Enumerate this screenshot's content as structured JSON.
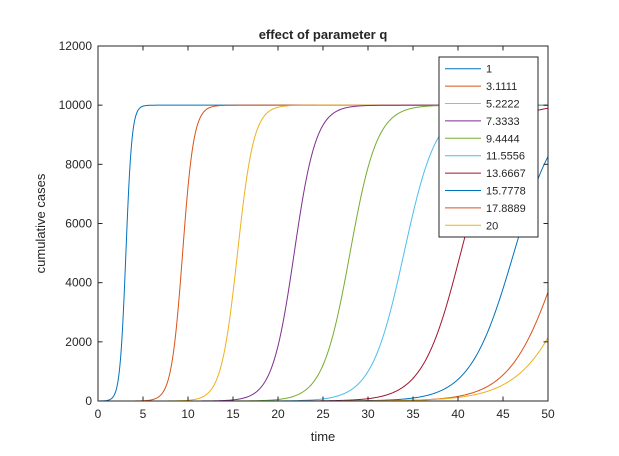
{
  "chart_data": {
    "type": "line",
    "title": "effect of parameter q",
    "xlabel": "time",
    "ylabel": "cumulative cases",
    "xlim": [
      0,
      50
    ],
    "ylim": [
      0,
      12000
    ],
    "xticks": [
      0,
      5,
      10,
      15,
      20,
      25,
      30,
      35,
      40,
      45,
      50
    ],
    "yticks": [
      0,
      2000,
      4000,
      6000,
      8000,
      10000,
      12000
    ],
    "grid": false,
    "legend_position": "top-right",
    "carrying_capacity": 10000,
    "series": [
      {
        "name": "1",
        "color": "#0072BD",
        "midpoint": 3.1,
        "rate": 3.0
      },
      {
        "name": "3.1111",
        "color": "#D95319",
        "midpoint": 9.4,
        "rate": 1.6
      },
      {
        "name": "5.2222",
        "color": "#EDB120",
        "midpoint": 15.5,
        "rate": 1.1
      },
      {
        "name": "7.3333",
        "color": "#7E2F8E",
        "midpoint": 21.8,
        "rate": 0.82
      },
      {
        "name": "9.4444",
        "color": "#77AC30",
        "midpoint": 28.0,
        "rate": 0.66
      },
      {
        "name": "11.5556",
        "color": "#4DBEEE",
        "midpoint": 34.0,
        "rate": 0.55
      },
      {
        "name": "13.6667",
        "color": "#A2142F",
        "midpoint": 40.3,
        "rate": 0.47
      },
      {
        "name": "15.7778",
        "color": "#0072BD",
        "midpoint": 46.2,
        "rate": 0.41
      },
      {
        "name": "17.8889",
        "color": "#D95319",
        "midpoint": 51.5,
        "rate": 0.36
      },
      {
        "name": "20",
        "color": "#EDB120",
        "midpoint": 54.2,
        "rate": 0.31
      }
    ]
  }
}
